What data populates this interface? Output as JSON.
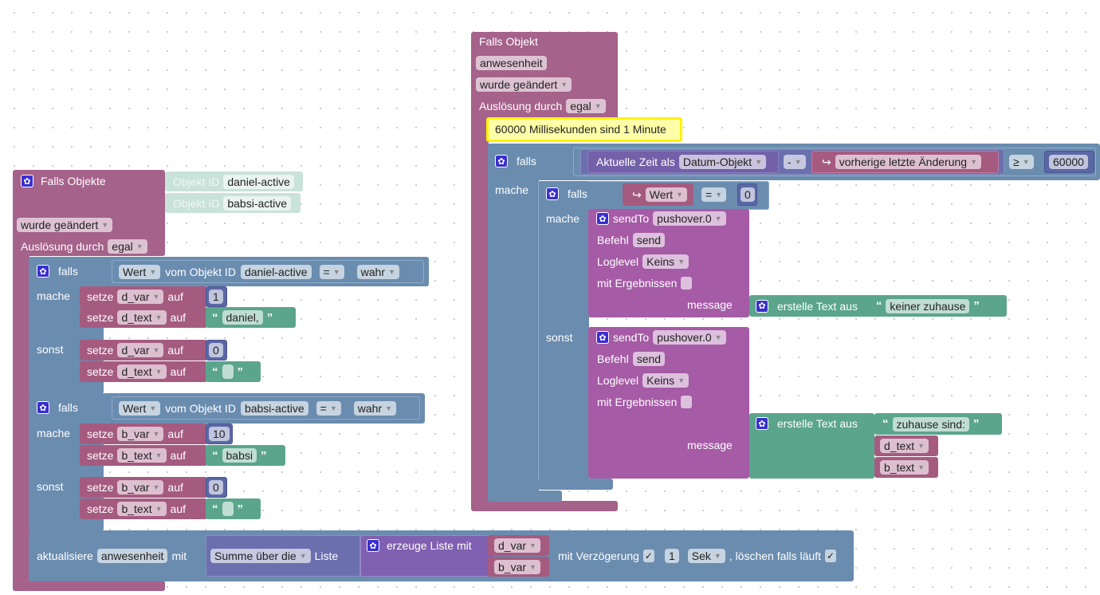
{
  "left": {
    "header": "Falls Objekte",
    "object_id_label": "Objekt ID",
    "object_ids": [
      "daniel-active",
      "babsi-active"
    ],
    "trigger": "wurde geändert",
    "ausloesung_label": "Auslösung durch",
    "ausloesung_value": "egal",
    "ifs": [
      {
        "falls": "falls",
        "wert": "Wert",
        "vom": "vom Objekt ID",
        "object": "daniel-active",
        "op": "=",
        "value": "wahr",
        "mache": "mache",
        "sonst": "sonst",
        "then": [
          {
            "setze": "setze",
            "var": "d_var",
            "auf": "auf",
            "val": "1"
          },
          {
            "setze": "setze",
            "var": "d_text",
            "auf": "auf",
            "val": "daniel,"
          }
        ],
        "else": [
          {
            "setze": "setze",
            "var": "d_var",
            "auf": "auf",
            "val": "0"
          },
          {
            "setze": "setze",
            "var": "d_text",
            "auf": "auf",
            "val": ""
          }
        ]
      },
      {
        "falls": "falls",
        "wert": "Wert",
        "vom": "vom Objekt ID",
        "object": "babsi-active",
        "op": "=",
        "value": "wahr",
        "mache": "mache",
        "sonst": "sonst",
        "then": [
          {
            "setze": "setze",
            "var": "b_var",
            "auf": "auf",
            "val": "10"
          },
          {
            "setze": "setze",
            "var": "b_text",
            "auf": "auf",
            "val": "babsi"
          }
        ],
        "else": [
          {
            "setze": "setze",
            "var": "b_var",
            "auf": "auf",
            "val": "0"
          },
          {
            "setze": "setze",
            "var": "b_text",
            "auf": "auf",
            "val": ""
          }
        ]
      }
    ],
    "update": {
      "label": "aktualisiere",
      "object": "anwesenheit",
      "mit": "mit",
      "summe": "Summe über die",
      "liste": "Liste",
      "erzeuge": "erzeuge Liste mit",
      "items": [
        "d_var",
        "b_var"
      ],
      "delay_label": "mit Verzögerung",
      "delay_checked": "✓",
      "delay_value": "1",
      "unit": "Sek",
      "clear_label": ", löschen falls läuft",
      "clear_checked": "✓"
    }
  },
  "right": {
    "header": "Falls Objekt",
    "object": "anwesenheit",
    "trigger": "wurde geändert",
    "ausloesung_label": "Auslösung durch",
    "ausloesung_value": "egal",
    "comment": "60000 Millisekunden sind 1 Minute",
    "falls": "falls",
    "mache": "mache",
    "aktuelle": "Aktuelle Zeit als",
    "format": "Datum-Objekt",
    "minus": "-",
    "vorherige": "vorherige letzte Änderung",
    "ge": "≥",
    "threshold": "60000",
    "inner": {
      "falls": "falls",
      "wert": "Wert",
      "op": "=",
      "value": "0",
      "mache": "mache",
      "sonst": "sonst"
    },
    "send1": {
      "sendto": "sendTo",
      "instance": "pushover.0",
      "befehl": "Befehl",
      "cmd": "send",
      "loglevel": "Loglevel",
      "level": "Keins",
      "mit": "mit Ergebnissen",
      "message": "message",
      "erstelle": "erstelle Text aus",
      "text": "keiner zuhause"
    },
    "send2": {
      "sendto": "sendTo",
      "instance": "pushover.0",
      "befehl": "Befehl",
      "cmd": "send",
      "loglevel": "Loglevel",
      "level": "Keins",
      "mit": "mit Ergebnissen",
      "message": "message",
      "erstelle": "erstelle Text aus",
      "text": "zuhause sind:",
      "items": [
        "d_text",
        "b_text"
      ]
    }
  }
}
